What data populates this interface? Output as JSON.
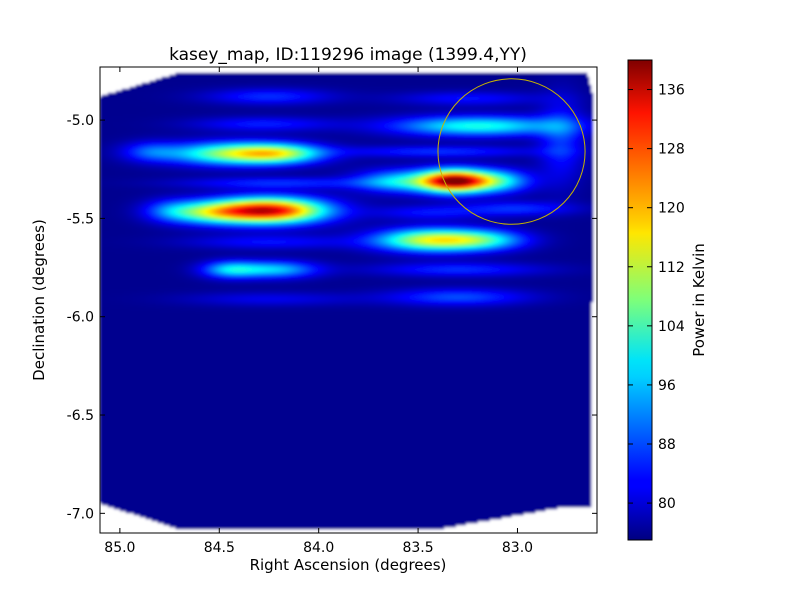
{
  "chart_data": {
    "type": "heatmap",
    "title": "kasey_map, ID:119296 image (1399.4,YY)",
    "xlabel": "Right Ascension (degrees)",
    "ylabel": "Declination (degrees)",
    "xlim": [
      85.1,
      82.6
    ],
    "ylim": [
      -7.1,
      -4.73
    ],
    "x_ticks": [
      "85.0",
      "84.5",
      "84.0",
      "83.5",
      "83.0"
    ],
    "y_ticks": [
      "-5.0",
      "-5.5",
      "-6.0",
      "-6.5",
      "-7.0"
    ],
    "colorbar": {
      "label": "Power in Kelvin",
      "colormap": "jet",
      "range": [
        75,
        140
      ],
      "ticks": [
        "80",
        "88",
        "96",
        "104",
        "112",
        "120",
        "128",
        "136"
      ]
    },
    "background_level": 76,
    "footprint": [
      [
        85.1,
        -4.88
      ],
      [
        84.7,
        -4.76
      ],
      [
        82.65,
        -4.76
      ],
      [
        82.62,
        -4.88
      ],
      [
        82.63,
        -6.97
      ],
      [
        82.78,
        -6.97
      ],
      [
        83.4,
        -7.08
      ],
      [
        84.7,
        -7.08
      ],
      [
        85.1,
        -6.95
      ]
    ],
    "blobs": [
      {
        "ra": 84.25,
        "dec": -4.88,
        "amp": 10,
        "sra": 0.22,
        "sdec": 0.028
      },
      {
        "ra": 84.28,
        "dec": -5.02,
        "amp": 9,
        "sra": 0.25,
        "sdec": 0.025
      },
      {
        "ra": 84.45,
        "dec": -5.17,
        "amp": 30,
        "sra": 0.22,
        "sdec": 0.04
      },
      {
        "ra": 84.2,
        "dec": -5.17,
        "amp": 26,
        "sra": 0.16,
        "sdec": 0.035
      },
      {
        "ra": 84.85,
        "dec": -5.16,
        "amp": 10,
        "sra": 0.1,
        "sdec": 0.035
      },
      {
        "ra": 84.2,
        "dec": -5.32,
        "amp": 10,
        "sra": 0.35,
        "sdec": 0.02
      },
      {
        "ra": 84.25,
        "dec": -5.46,
        "amp": 58,
        "sra": 0.2,
        "sdec": 0.045
      },
      {
        "ra": 84.55,
        "dec": -5.47,
        "amp": 22,
        "sra": 0.15,
        "sdec": 0.04
      },
      {
        "ra": 84.75,
        "dec": -5.46,
        "amp": 10,
        "sra": 0.1,
        "sdec": 0.04
      },
      {
        "ra": 84.25,
        "dec": -5.62,
        "amp": 8,
        "sra": 0.3,
        "sdec": 0.025
      },
      {
        "ra": 84.45,
        "dec": -5.76,
        "amp": 18,
        "sra": 0.1,
        "sdec": 0.03
      },
      {
        "ra": 84.22,
        "dec": -5.76,
        "amp": 20,
        "sra": 0.15,
        "sdec": 0.03
      },
      {
        "ra": 84.25,
        "dec": -5.91,
        "amp": 6,
        "sra": 0.3,
        "sdec": 0.025
      },
      {
        "ra": 83.25,
        "dec": -4.89,
        "amp": 8,
        "sra": 0.25,
        "sdec": 0.025
      },
      {
        "ra": 83.2,
        "dec": -5.03,
        "amp": 25,
        "sra": 0.3,
        "sdec": 0.035
      },
      {
        "ra": 83.4,
        "dec": -5.16,
        "amp": 10,
        "sra": 0.35,
        "sdec": 0.02
      },
      {
        "ra": 83.32,
        "dec": -5.31,
        "amp": 60,
        "sra": 0.12,
        "sdec": 0.04
      },
      {
        "ra": 83.1,
        "dec": -5.31,
        "amp": 22,
        "sra": 0.12,
        "sdec": 0.04
      },
      {
        "ra": 83.6,
        "dec": -5.31,
        "amp": 20,
        "sra": 0.15,
        "sdec": 0.04
      },
      {
        "ra": 83.0,
        "dec": -5.45,
        "amp": 10,
        "sra": 0.2,
        "sdec": 0.025
      },
      {
        "ra": 83.45,
        "dec": -5.47,
        "amp": 8,
        "sra": 0.2,
        "sdec": 0.025
      },
      {
        "ra": 83.42,
        "dec": -5.61,
        "amp": 38,
        "sra": 0.2,
        "sdec": 0.04
      },
      {
        "ra": 83.15,
        "dec": -5.61,
        "amp": 15,
        "sra": 0.15,
        "sdec": 0.035
      },
      {
        "ra": 83.3,
        "dec": -5.76,
        "amp": 10,
        "sra": 0.3,
        "sdec": 0.025
      },
      {
        "ra": 83.3,
        "dec": -5.9,
        "amp": 12,
        "sra": 0.25,
        "sdec": 0.03
      },
      {
        "ra": 82.78,
        "dec": -5.1,
        "amp": 10,
        "sra": 0.08,
        "sdec": 0.15
      }
    ],
    "annotations": [
      {
        "type": "circle",
        "ra": 83.03,
        "dec": -5.16,
        "radius_ra": 0.37,
        "radius_dec": 0.37,
        "color": "#c8b400"
      }
    ]
  }
}
